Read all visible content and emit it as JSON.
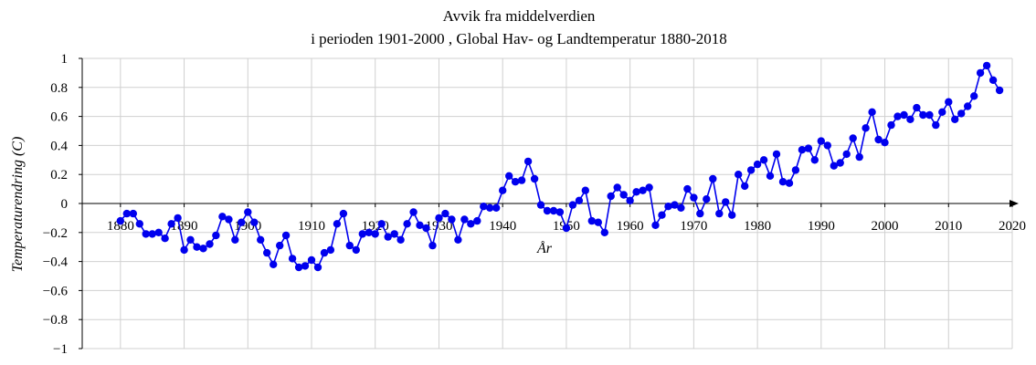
{
  "chart_data": {
    "type": "line",
    "title": "Avvik fra middelverdien",
    "subtitle": "i perioden 1901-2000 , Global Hav- og Landtemperatur 1880-2018",
    "xlabel": "År",
    "ylabel": "Temperaturendring (C)",
    "xlim": [
      1874,
      2020
    ],
    "ylim": [
      -1,
      1
    ],
    "x_ticks": [
      1880,
      1890,
      1900,
      1910,
      1920,
      1930,
      1940,
      1950,
      1960,
      1970,
      1980,
      1990,
      2000,
      2010,
      2020
    ],
    "y_ticks": [
      -1,
      -0.8,
      -0.6,
      -0.4,
      -0.2,
      0,
      0.2,
      0.4,
      0.6,
      0.8,
      1
    ],
    "y_tick_labels": [
      "−1",
      "−0.8",
      "−0.6",
      "−0.4",
      "−0.2",
      "0",
      "0.2",
      "0.4",
      "0.6",
      "0.8",
      "1"
    ],
    "grid": true,
    "series": [
      {
        "color": "#0000ee",
        "x": [
          1880,
          1881,
          1882,
          1883,
          1884,
          1885,
          1886,
          1887,
          1888,
          1889,
          1890,
          1891,
          1892,
          1893,
          1894,
          1895,
          1896,
          1897,
          1898,
          1899,
          1900,
          1901,
          1902,
          1903,
          1904,
          1905,
          1906,
          1907,
          1908,
          1909,
          1910,
          1911,
          1912,
          1913,
          1914,
          1915,
          1916,
          1917,
          1918,
          1919,
          1920,
          1921,
          1922,
          1923,
          1924,
          1925,
          1926,
          1927,
          1928,
          1929,
          1930,
          1931,
          1932,
          1933,
          1934,
          1935,
          1936,
          1937,
          1938,
          1939,
          1940,
          1941,
          1942,
          1943,
          1944,
          1945,
          1946,
          1947,
          1948,
          1949,
          1950,
          1951,
          1952,
          1953,
          1954,
          1955,
          1956,
          1957,
          1958,
          1959,
          1960,
          1961,
          1962,
          1963,
          1964,
          1965,
          1966,
          1967,
          1968,
          1969,
          1970,
          1971,
          1972,
          1973,
          1974,
          1975,
          1976,
          1977,
          1978,
          1979,
          1980,
          1981,
          1982,
          1983,
          1984,
          1985,
          1986,
          1987,
          1988,
          1989,
          1990,
          1991,
          1992,
          1993,
          1994,
          1995,
          1996,
          1997,
          1998,
          1999,
          2000,
          2001,
          2002,
          2003,
          2004,
          2005,
          2006,
          2007,
          2008,
          2009,
          2010,
          2011,
          2012,
          2013,
          2014,
          2015,
          2016,
          2017,
          2018
        ],
        "y": [
          -0.12,
          -0.07,
          -0.07,
          -0.14,
          -0.21,
          -0.21,
          -0.2,
          -0.24,
          -0.14,
          -0.1,
          -0.32,
          -0.25,
          -0.3,
          -0.31,
          -0.28,
          -0.22,
          -0.09,
          -0.11,
          -0.25,
          -0.13,
          -0.06,
          -0.13,
          -0.25,
          -0.34,
          -0.42,
          -0.29,
          -0.22,
          -0.38,
          -0.44,
          -0.43,
          -0.39,
          -0.44,
          -0.34,
          -0.32,
          -0.14,
          -0.07,
          -0.29,
          -0.32,
          -0.21,
          -0.2,
          -0.21,
          -0.14,
          -0.23,
          -0.21,
          -0.25,
          -0.14,
          -0.06,
          -0.15,
          -0.17,
          -0.29,
          -0.1,
          -0.07,
          -0.11,
          -0.25,
          -0.11,
          -0.14,
          -0.12,
          -0.02,
          -0.03,
          -0.03,
          0.09,
          0.19,
          0.15,
          0.16,
          0.29,
          0.17,
          -0.01,
          -0.05,
          -0.05,
          -0.06,
          -0.17,
          -0.01,
          0.02,
          0.09,
          -0.12,
          -0.13,
          -0.2,
          0.05,
          0.11,
          0.06,
          0.02,
          0.08,
          0.09,
          0.11,
          -0.15,
          -0.08,
          -0.02,
          -0.01,
          -0.03,
          0.1,
          0.04,
          -0.07,
          0.03,
          0.17,
          -0.07,
          0.01,
          -0.08,
          0.2,
          0.12,
          0.23,
          0.27,
          0.3,
          0.19,
          0.34,
          0.15,
          0.14,
          0.23,
          0.37,
          0.38,
          0.3,
          0.43,
          0.4,
          0.26,
          0.28,
          0.34,
          0.45,
          0.32,
          0.52,
          0.63,
          0.44,
          0.42,
          0.54,
          0.6,
          0.61,
          0.58,
          0.66,
          0.61,
          0.61,
          0.54,
          0.63,
          0.7,
          0.58,
          0.62,
          0.67,
          0.74,
          0.9,
          0.95,
          0.85,
          0.78
        ]
      }
    ]
  }
}
